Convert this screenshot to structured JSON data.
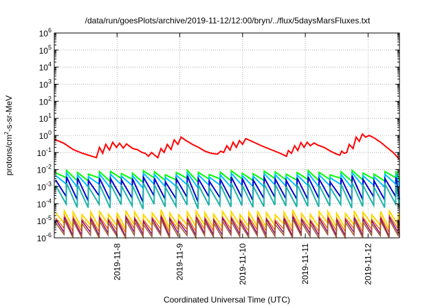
{
  "chart_data": {
    "type": "line",
    "title": "/data/run/goesPlots/archive/2019-11-12/12:00/bryn/../flux/5daysMarsFluxes.txt",
    "xlabel": "Coordinated Universal Time (UTC)",
    "ylabel": {
      "pre": "protons/cm",
      "sup": "2",
      "post": "-s-sr-MeV"
    },
    "yscale": "log",
    "ylim": [
      1e-06,
      1000000.0
    ],
    "xlim": [
      0,
      5.5
    ],
    "grid": true,
    "x_tick_labels": [
      {
        "x": 1,
        "label": "2019-11-8"
      },
      {
        "x": 2,
        "label": "2019-11-9"
      },
      {
        "x": 3,
        "label": "2019-11-10"
      },
      {
        "x": 4,
        "label": "2019-11-11"
      },
      {
        "x": 5,
        "label": "2019-11-12"
      }
    ],
    "y_tick_labels": [
      {
        "value": 1e-06,
        "base": "10",
        "exp": "-6"
      },
      {
        "value": 1e-05,
        "base": "10",
        "exp": "-5"
      },
      {
        "value": 0.0001,
        "base": "10",
        "exp": "-4"
      },
      {
        "value": 0.001,
        "base": "10",
        "exp": "-3"
      },
      {
        "value": 0.01,
        "base": "10",
        "exp": "-2"
      },
      {
        "value": 0.1,
        "base": "10",
        "exp": "-1"
      },
      {
        "value": 1.0,
        "base": "10",
        "exp": "0"
      },
      {
        "value": 10.0,
        "base": "10",
        "exp": "1"
      },
      {
        "value": 100.0,
        "base": "10",
        "exp": "2"
      },
      {
        "value": 1000.0,
        "base": "10",
        "exp": "3"
      },
      {
        "value": 10000.0,
        "base": "10",
        "exp": "4"
      },
      {
        "value": 100000.0,
        "base": "10",
        "exp": "5"
      },
      {
        "value": 1000000.0,
        "base": "10",
        "exp": "6"
      }
    ],
    "series": [
      {
        "color": "#ff0000",
        "width": 2,
        "points": [
          [
            0.0,
            0.6
          ],
          [
            0.15,
            0.35
          ],
          [
            0.3,
            0.15
          ],
          [
            0.45,
            0.09
          ],
          [
            0.6,
            0.06
          ],
          [
            0.67,
            0.05
          ],
          [
            0.72,
            0.2
          ],
          [
            0.77,
            0.09
          ],
          [
            0.82,
            0.3
          ],
          [
            0.88,
            0.14
          ],
          [
            0.93,
            0.4
          ],
          [
            0.99,
            0.2
          ],
          [
            1.04,
            0.35
          ],
          [
            1.1,
            0.18
          ],
          [
            1.15,
            0.32
          ],
          [
            1.25,
            0.17
          ],
          [
            1.32,
            0.15
          ],
          [
            1.4,
            0.1
          ],
          [
            1.45,
            0.09
          ],
          [
            1.5,
            0.06
          ],
          [
            1.55,
            0.1
          ],
          [
            1.6,
            0.07
          ],
          [
            1.65,
            0.05
          ],
          [
            1.7,
            0.17
          ],
          [
            1.75,
            0.1
          ],
          [
            1.8,
            0.3
          ],
          [
            1.86,
            0.15
          ],
          [
            1.91,
            0.55
          ],
          [
            1.97,
            0.3
          ],
          [
            2.02,
            0.8
          ],
          [
            2.1,
            0.5
          ],
          [
            2.2,
            0.3
          ],
          [
            2.3,
            0.2
          ],
          [
            2.4,
            0.12
          ],
          [
            2.5,
            0.09
          ],
          [
            2.6,
            0.08
          ],
          [
            2.65,
            0.12
          ],
          [
            2.7,
            0.1
          ],
          [
            2.75,
            0.25
          ],
          [
            2.8,
            0.14
          ],
          [
            2.85,
            0.4
          ],
          [
            2.9,
            0.2
          ],
          [
            2.95,
            0.5
          ],
          [
            3.0,
            0.3
          ],
          [
            3.05,
            0.65
          ],
          [
            3.15,
            0.45
          ],
          [
            3.3,
            0.25
          ],
          [
            3.45,
            0.15
          ],
          [
            3.6,
            0.09
          ],
          [
            3.7,
            0.06
          ],
          [
            3.73,
            0.13
          ],
          [
            3.78,
            0.09
          ],
          [
            3.83,
            0.25
          ],
          [
            3.88,
            0.13
          ],
          [
            3.93,
            0.38
          ],
          [
            3.98,
            0.2
          ],
          [
            4.03,
            0.4
          ],
          [
            4.08,
            0.25
          ],
          [
            4.14,
            0.36
          ],
          [
            4.2,
            0.27
          ],
          [
            4.3,
            0.2
          ],
          [
            4.4,
            0.12
          ],
          [
            4.5,
            0.08
          ],
          [
            4.55,
            0.07
          ],
          [
            4.58,
            0.12
          ],
          [
            4.62,
            0.09
          ],
          [
            4.66,
            0.1
          ],
          [
            4.7,
            0.3
          ],
          [
            4.76,
            0.17
          ],
          [
            4.81,
            0.8
          ],
          [
            4.86,
            0.45
          ],
          [
            4.91,
            1.2
          ],
          [
            4.96,
            0.8
          ],
          [
            5.02,
            1.0
          ],
          [
            5.1,
            0.7
          ],
          [
            5.2,
            0.4
          ],
          [
            5.3,
            0.2
          ],
          [
            5.4,
            0.1
          ],
          [
            5.5,
            0.04
          ]
        ]
      },
      {
        "color": "#00ff00",
        "width": 2,
        "sawtooth": {
          "period": 0.175,
          "start": 0.02,
          "end": 5.5,
          "peaks": [
            0.0065,
            0.007,
            0.0072,
            0.007,
            0.0068
          ],
          "troughs": [
            0.0028,
            0.0025,
            0.0028,
            0.0026,
            0.0022
          ]
        }
      },
      {
        "color": "#00bfff",
        "width": 2,
        "sawtooth": {
          "period": 0.175,
          "start": 0.02,
          "end": 5.5,
          "peaks": [
            0.0045,
            0.005,
            0.0052,
            0.005,
            0.0048
          ],
          "troughs": [
            0.0012,
            0.0011,
            0.0012,
            0.0011,
            0.001
          ]
        }
      },
      {
        "color": "#0000cd",
        "width": 2,
        "sawtooth": {
          "period": 0.175,
          "start": 0.02,
          "end": 5.5,
          "peaks": [
            0.0025,
            0.003,
            0.0035,
            0.003,
            0.0028
          ],
          "troughs": [
            0.00025,
            0.0002,
            0.00022,
            0.0002,
            0.00015
          ]
        }
      },
      {
        "color": "#20b2aa",
        "width": 2,
        "sawtooth": {
          "period": 0.175,
          "start": 0.02,
          "end": 5.5,
          "peaks": [
            0.0012,
            0.0013,
            0.0014,
            0.0013,
            0.0012
          ],
          "troughs": [
            8e-05,
            7e-05,
            8e-05,
            7e-05,
            6e-05
          ]
        }
      },
      {
        "color": "#ffd700",
        "width": 2,
        "sawtooth": {
          "period": 0.14,
          "start": 0.02,
          "end": 5.5,
          "peaks": [
            3e-05,
            3e-05,
            3.5e-05,
            3e-05,
            3e-05
          ],
          "troughs": [
            5e-06,
            5e-06,
            6e-06,
            5e-06,
            4e-06
          ]
        }
      },
      {
        "color": "#ff6a00",
        "width": 1.5,
        "sawtooth": {
          "period": 0.14,
          "start": 0.02,
          "end": 5.5,
          "peaks": [
            1.5e-05,
            1.6e-05,
            1.8e-05,
            1.6e-05,
            1.4e-05
          ],
          "troughs": [
            3e-06,
            2.8e-06,
            3e-06,
            2.8e-06,
            2.5e-06
          ]
        }
      },
      {
        "color": "#800080",
        "width": 1.5,
        "sawtooth": {
          "period": 0.14,
          "start": 0.02,
          "end": 5.5,
          "peaks": [
            1.2e-05,
            1.3e-05,
            1.4e-05,
            1.3e-05,
            1.2e-05
          ],
          "troughs": [
            1.8e-06,
            1.7e-06,
            1.8e-06,
            1.6e-06,
            1.5e-06
          ]
        }
      },
      {
        "color": "#a0522d",
        "width": 1.5,
        "sawtooth": {
          "period": 0.14,
          "start": 0.02,
          "end": 5.5,
          "peaks": [
            8e-06,
            9e-06,
            1e-05,
            9e-06,
            8e-06
          ],
          "troughs": [
            1.2e-06,
            1.2e-06,
            1.3e-06,
            1.2e-06,
            1.1e-06
          ]
        }
      }
    ]
  }
}
